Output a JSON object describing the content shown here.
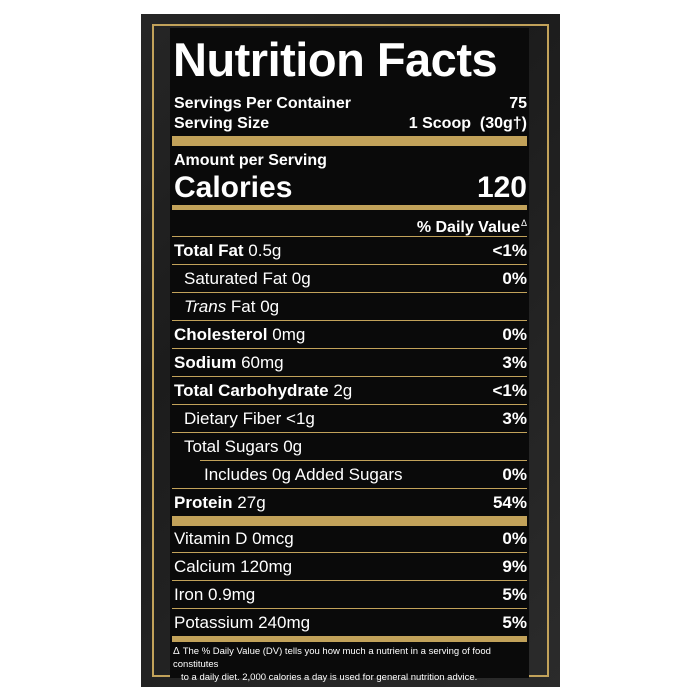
{
  "title": "Nutrition Facts",
  "servings": {
    "per_container_label": "Servings Per Container",
    "per_container_value": "75",
    "size_label": "Serving Size",
    "size_value": "1 Scoop  (30g†)"
  },
  "amount_label": "Amount per Serving",
  "calories": {
    "label": "Calories",
    "value": "120"
  },
  "dv_header": "% Daily Value",
  "dv_symbol": "Δ",
  "nutrients": [
    {
      "name": "Total Fat",
      "amount": " 0.5g",
      "dv": "<1%"
    },
    {
      "name": "Saturated Fat",
      "amount": " 0g",
      "dv": "0%"
    },
    {
      "name": "Trans",
      "amount": " Fat 0g",
      "dv": ""
    },
    {
      "name": "Cholesterol",
      "amount": " 0mg",
      "dv": "0%"
    },
    {
      "name": "Sodium",
      "amount": " 60mg",
      "dv": "3%"
    },
    {
      "name": "Total Carbohydrate",
      "amount": " 2g",
      "dv": "<1%"
    },
    {
      "name": "Dietary Fiber",
      "amount": " <1g",
      "dv": "3%"
    },
    {
      "name": "Total Sugars",
      "amount": " 0g",
      "dv": ""
    },
    {
      "name": "Includes 0g Added Sugars",
      "amount": "",
      "dv": "0%"
    },
    {
      "name": "Protein",
      "amount": " 27g",
      "dv": "54%"
    }
  ],
  "vitamins": [
    {
      "name": "Vitamin D 0mcg",
      "dv": "0%"
    },
    {
      "name": "Calcium 120mg",
      "dv": "9%"
    },
    {
      "name": "Iron 0.9mg",
      "dv": "5%"
    },
    {
      "name": "Potassium 240mg",
      "dv": "5%"
    }
  ],
  "footnote": {
    "symbol": "Δ",
    "line1": "The % Daily Value (DV) tells you how much a nutrient in a serving of food constitutes",
    "line2": "to a daily diet. 2,000 calories a day is used for general nutrition advice."
  },
  "colors": {
    "gold": "#c2a25a",
    "label_bg": "#0a0a0a",
    "text": "#ffffff"
  }
}
